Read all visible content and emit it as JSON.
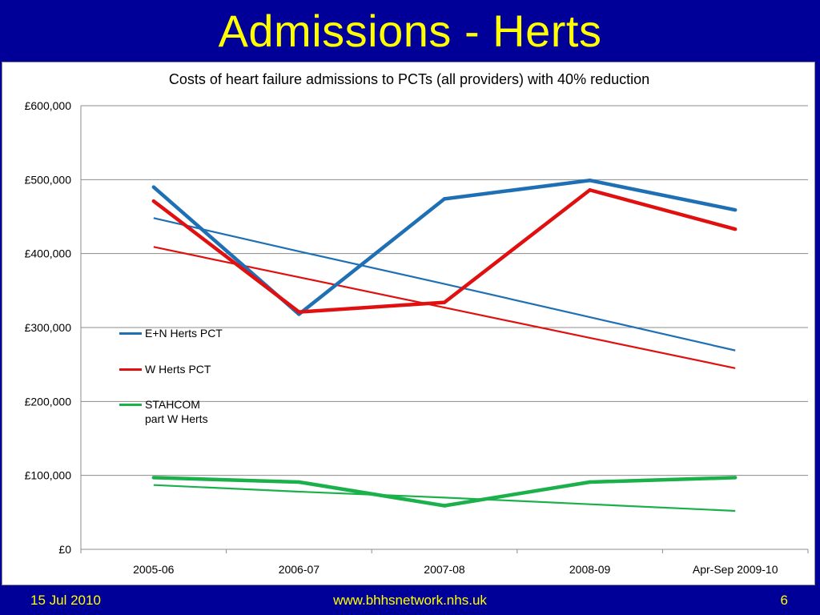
{
  "slide": {
    "title": "Admissions - Herts",
    "footer_date": "15 Jul 2010",
    "footer_url": "www.bhhsnetwork.nhs.uk",
    "footer_page": "6",
    "background_color": "#000099",
    "title_color": "#ffff00"
  },
  "chart_data": {
    "type": "line",
    "title": "Costs of heart failure admissions to PCTs (all providers) with 40% reduction",
    "xlabel": "",
    "ylabel": "",
    "categories": [
      "2005-06",
      "2006-07",
      "2007-08",
      "2008-09",
      "Apr-Sep 2009-10"
    ],
    "ylim": [
      0,
      600000
    ],
    "yticks": [
      0,
      100000,
      200000,
      300000,
      400000,
      500000,
      600000
    ],
    "ytick_labels": [
      "£0",
      "£100,000",
      "£200,000",
      "£300,000",
      "£400,000",
      "£500,000",
      "£600,000"
    ],
    "grid": true,
    "legend_position": "left-center",
    "series": [
      {
        "name": "E+N Herts PCT",
        "color": "#1f6fb5",
        "values": [
          490000,
          318000,
          474000,
          499000,
          459000
        ]
      },
      {
        "name": "W Herts PCT",
        "color": "#e01010",
        "values": [
          471000,
          321000,
          334000,
          486000,
          433000
        ]
      },
      {
        "name": "STAHCOM\npart W Herts",
        "color": "#1ab04a",
        "values": [
          97000,
          91000,
          59000,
          91000,
          97000
        ]
      }
    ],
    "trendlines": [
      {
        "series": "E+N Herts PCT",
        "color": "#1f6fb5",
        "values": [
          448000,
          403000,
          359000,
          314000,
          269000
        ]
      },
      {
        "series": "W Herts PCT",
        "color": "#e01010",
        "values": [
          409000,
          368000,
          327000,
          286000,
          245000
        ]
      },
      {
        "series": "STAHCOM\npart W Herts",
        "color": "#1ab04a",
        "values": [
          87000,
          78000,
          70000,
          61000,
          52000
        ]
      }
    ]
  }
}
